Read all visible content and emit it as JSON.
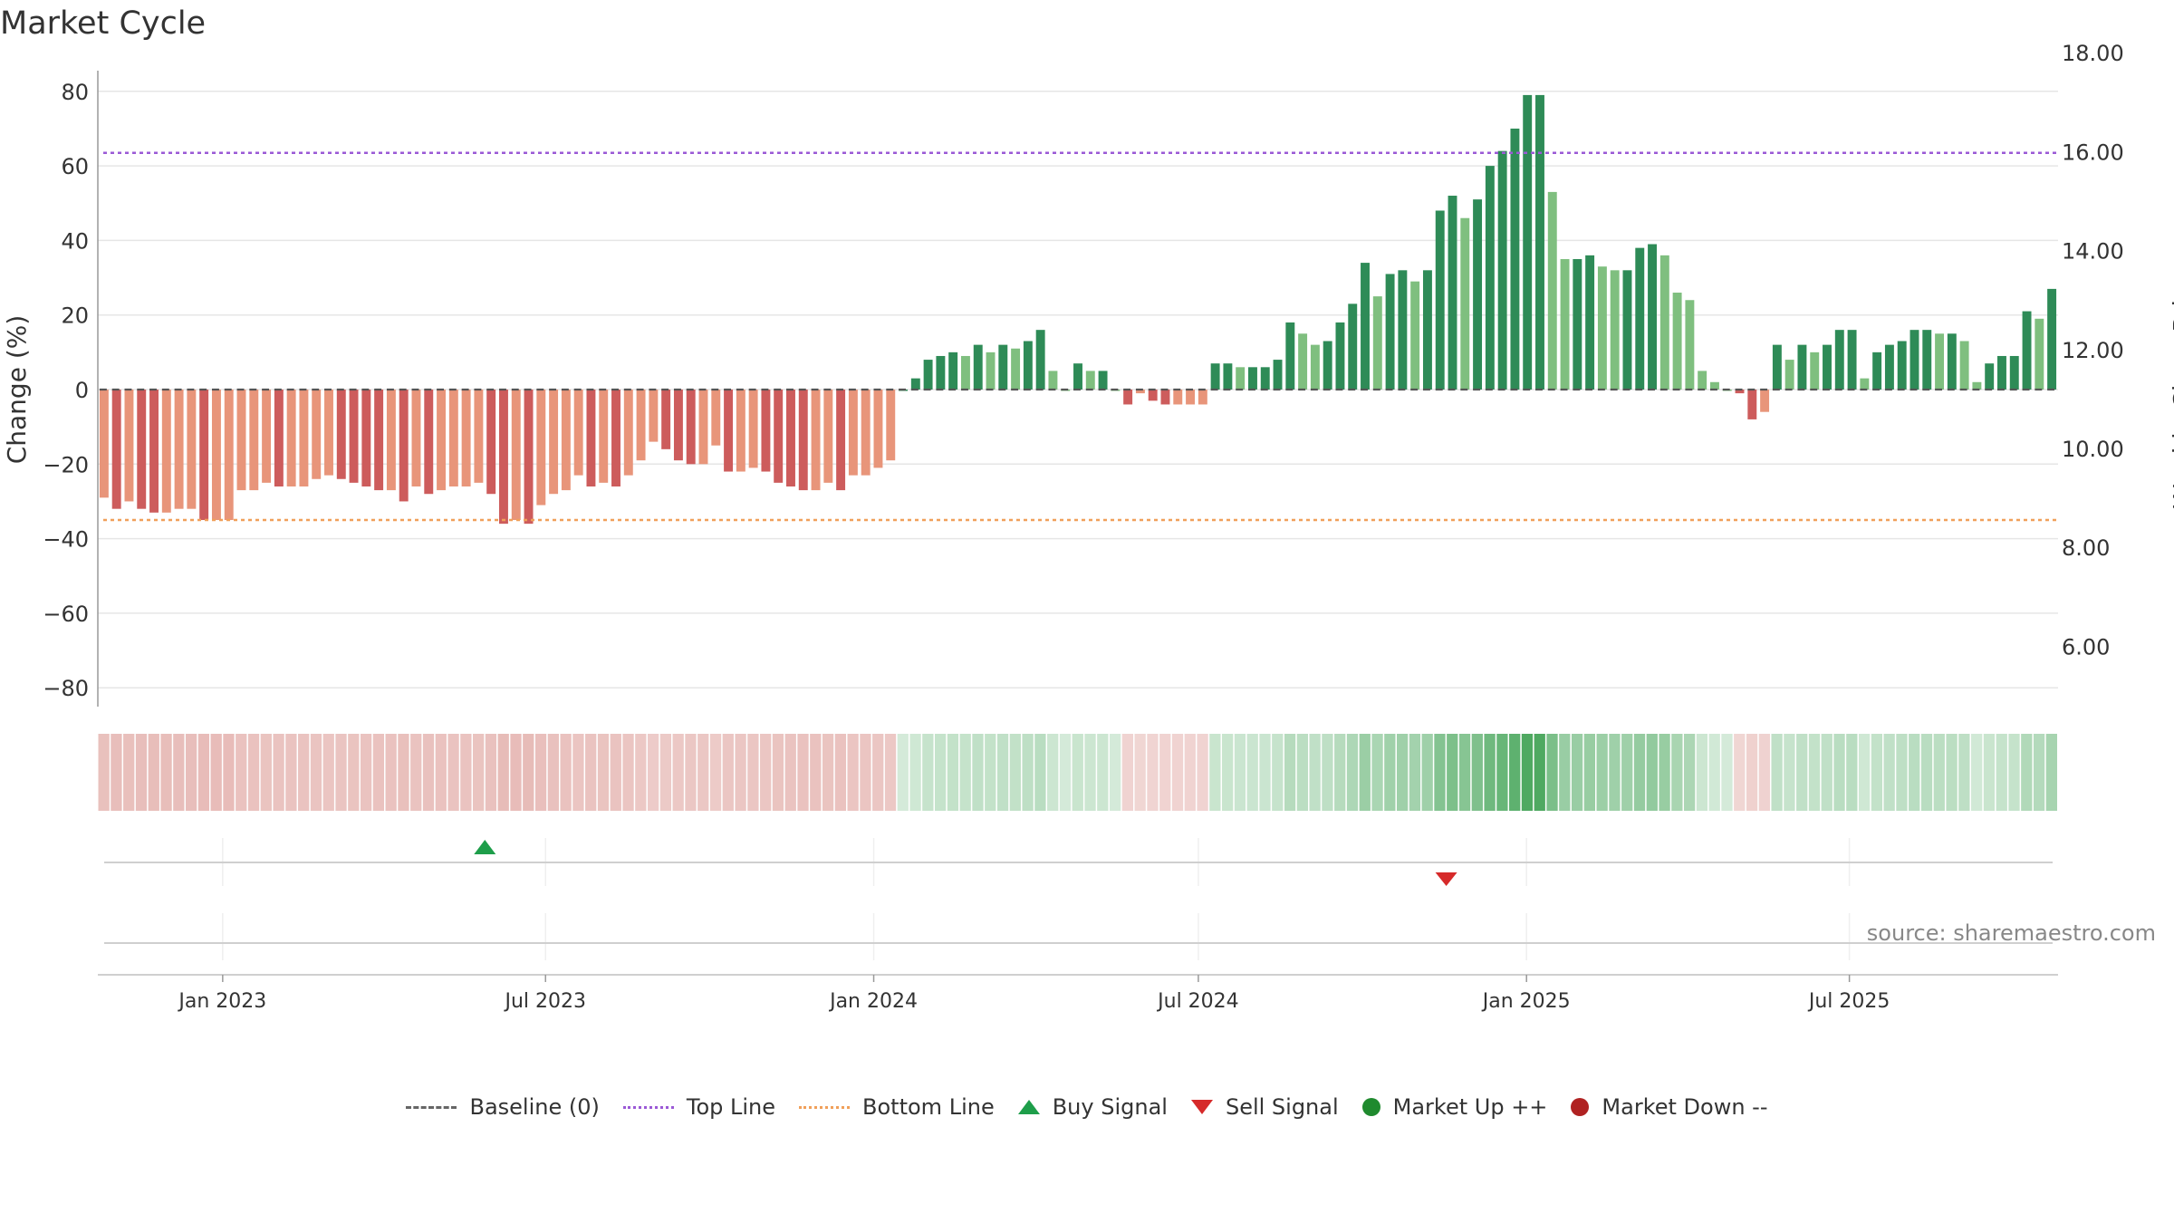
{
  "title": "Market Cycle",
  "source": "source: sharemaestro.com",
  "legend": {
    "baseline": "Baseline (0)",
    "top": "Top Line",
    "bottom": "Bottom Line",
    "buy": "Buy Signal",
    "sell": "Sell Signal",
    "up": "Market Up ++",
    "down": "Market Down --"
  },
  "colors": {
    "neg_dark": "#cd5c5c",
    "neg_light": "#e8957a",
    "pos_dark": "#2e8b57",
    "pos_light": "#7fbf7f",
    "top_line": "#9b59d6",
    "bottom_line": "#f0a05a",
    "buy": "#1e9e4a",
    "sell": "#d62a2a"
  },
  "chart_data": {
    "type": "bar",
    "ylabel": "Change (%)",
    "y2label": "Weekly Close Price",
    "ylim": [
      -80,
      80
    ],
    "yticks": [
      "80",
      "60",
      "40",
      "20",
      "0",
      "−20",
      "−40",
      "−60",
      "−80"
    ],
    "y2lim": [
      6,
      18
    ],
    "y2ticks": [
      "18.00",
      "16.00",
      "14.00",
      "12.00",
      "10.00",
      "8.00",
      "6.00"
    ],
    "top_line": 63.5,
    "bottom_line": -35,
    "x_start": "2022-10-23",
    "xticks": [
      {
        "date": "2023-01-01",
        "label": "Jan 2023"
      },
      {
        "date": "2023-07-01",
        "label": "Jul 2023"
      },
      {
        "date": "2024-01-01",
        "label": "Jan 2024"
      },
      {
        "date": "2024-07-01",
        "label": "Jul 2024"
      },
      {
        "date": "2025-01-01",
        "label": "Jan 2025"
      },
      {
        "date": "2025-07-01",
        "label": "Jul 2025"
      }
    ],
    "values": [
      -29,
      -32,
      -30,
      -32,
      -33,
      -33,
      -32,
      -32,
      -35,
      -35,
      -35,
      -27,
      -27,
      -25,
      -26,
      -26,
      -26,
      -24,
      -23,
      -24,
      -25,
      -26,
      -27,
      -27,
      -30,
      -26,
      -28,
      -27,
      -26,
      -26,
      -25,
      -28,
      -36,
      -35,
      -36,
      -31,
      -28,
      -27,
      -23,
      -26,
      -25,
      -26,
      -23,
      -19,
      -14,
      -16,
      -19,
      -20,
      -20,
      -15,
      -22,
      -22,
      -21,
      -22,
      -25,
      -26,
      -27,
      -27,
      -25,
      -27,
      -23,
      -23,
      -21,
      -19,
      0,
      3,
      8,
      9,
      10,
      9,
      12,
      10,
      12,
      11,
      13,
      16,
      5,
      0,
      7,
      5,
      5,
      0,
      -4,
      -1,
      -3,
      -4,
      -4,
      -4,
      -4,
      7,
      7,
      6,
      6,
      6,
      8,
      18,
      15,
      12,
      13,
      18,
      23,
      34,
      25,
      31,
      32,
      29,
      32,
      48,
      52,
      46,
      51,
      60,
      64,
      70,
      79,
      79,
      53,
      35,
      35,
      36,
      33,
      32,
      32,
      38,
      39,
      36,
      26,
      24,
      5,
      2,
      0,
      -1,
      -8,
      -6,
      12,
      8,
      12,
      10,
      12,
      16,
      16,
      3,
      10,
      12,
      13,
      16,
      16,
      15,
      15,
      13,
      2,
      7,
      9,
      9,
      21,
      19,
      27
    ],
    "buy_signals": [
      "2023-05-28"
    ],
    "sell_signals": [
      "2024-11-17"
    ]
  }
}
